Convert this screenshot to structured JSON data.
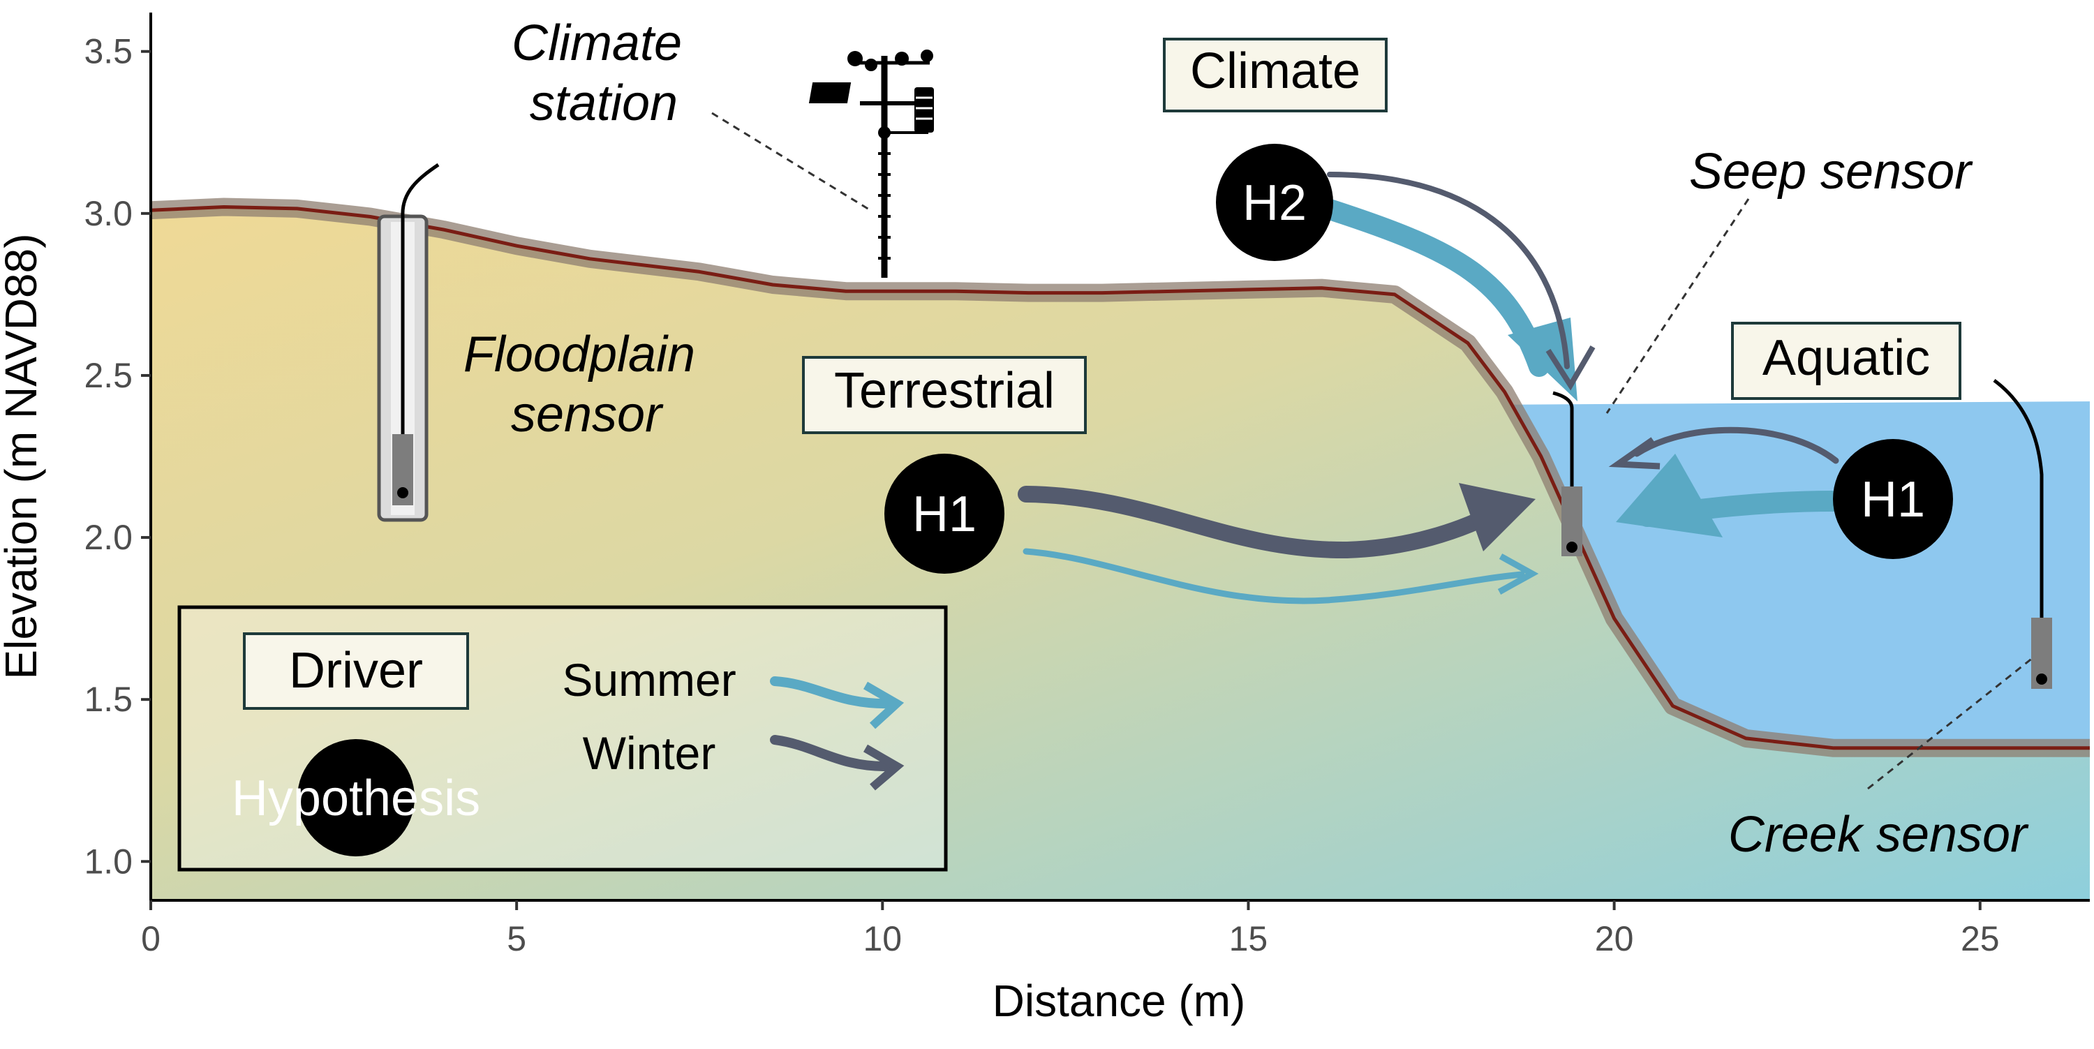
{
  "colors": {
    "water": "#8ec8ef",
    "soil_top": "#efd996",
    "soil_bottom": "#8ecfdc",
    "ground_line": "#7a1d14",
    "ground_band": "#8e7d70",
    "summer_arrow": "#5aa9c4",
    "winter_arrow": "#545b6e",
    "box_fill": "#f8f6ea",
    "box_border": "#1e3a3a"
  },
  "axes": {
    "xlabel": "Distance (m)",
    "ylabel": "Elevation (m NAVD88)",
    "xticks": [
      "0",
      "5",
      "10",
      "15",
      "20",
      "25"
    ],
    "yticks": [
      "1.0",
      "1.5",
      "2.0",
      "2.5",
      "3.0",
      "3.5"
    ],
    "xlim": [
      0,
      26.5
    ],
    "ylim": [
      0.88,
      3.62
    ]
  },
  "profile": {
    "x": [
      0,
      1,
      2,
      3,
      4,
      5,
      6,
      7.5,
      8.5,
      9.5,
      11,
      12,
      13,
      14,
      15,
      16,
      17,
      18,
      18.5,
      19,
      19.5,
      20,
      20.8,
      21.8,
      23,
      24,
      25,
      26.5
    ],
    "y": [
      3.01,
      3.02,
      3.015,
      2.99,
      2.95,
      2.9,
      2.86,
      2.82,
      2.78,
      2.76,
      2.76,
      2.755,
      2.755,
      2.76,
      2.765,
      2.77,
      2.75,
      2.6,
      2.45,
      2.25,
      2.0,
      1.75,
      1.48,
      1.38,
      1.35,
      1.35,
      1.35,
      1.35
    ]
  },
  "water_level": 2.41,
  "annotations": {
    "climate_station": [
      "Climate",
      "station"
    ],
    "floodplain_sensor": [
      "Floodplain",
      "sensor"
    ],
    "seep_sensor": "Seep sensor",
    "creek_sensor": "Creek sensor"
  },
  "drivers": {
    "climate": "Climate",
    "terrestrial": "Terrestrial",
    "aquatic": "Aquatic"
  },
  "hypotheses": {
    "terrestrial": "H1",
    "climate": "H2",
    "aquatic": "H1"
  },
  "legend": {
    "driver_label": "Driver",
    "hypothesis_label": "Hypothesis",
    "summer_label": "Summer",
    "winter_label": "Winter"
  }
}
